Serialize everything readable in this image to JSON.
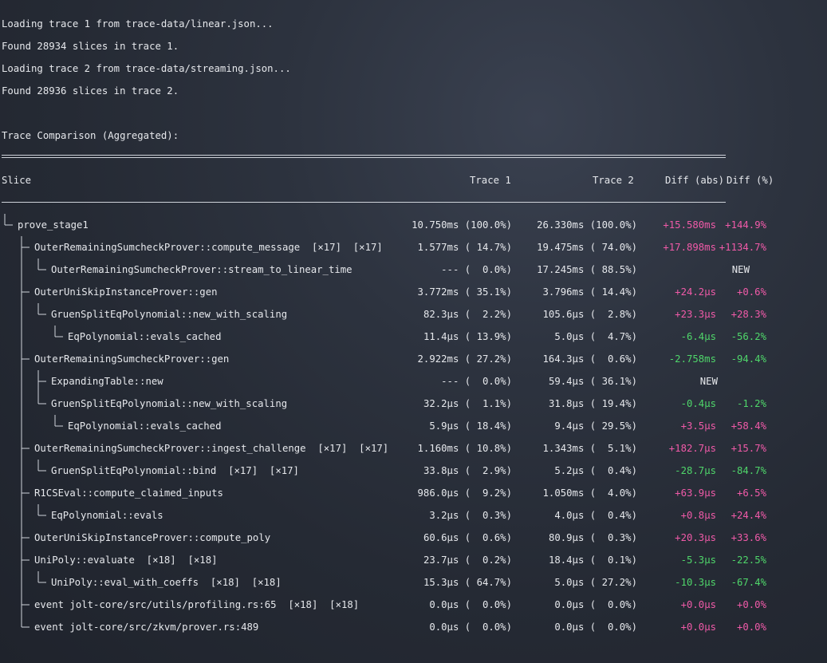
{
  "log": [
    "Loading trace 1 from trace-data/linear.json...",
    "Found 28934 slices in trace 1.",
    "Loading trace 2 from trace-data/streaming.json...",
    "Found 28936 slices in trace 2."
  ],
  "comparison_title": "Trace Comparison (Aggregated):",
  "headers": {
    "slice": "Slice",
    "trace1": "Trace 1",
    "trace2": "Trace 2",
    "diff_abs": "Diff (abs)",
    "diff_pct": "Diff (%)"
  },
  "colors": {
    "increase": "#f05aa8",
    "decrease": "#4fd66a",
    "text": "#e6e8ec"
  },
  "rows": [
    {
      "depth": 0,
      "branch": "last",
      "ancestors": [],
      "name": "prove_stage1",
      "t1": "10.750ms (100.0%)",
      "t2": "26.330ms (100.0%)",
      "dabs": "+15.580ms",
      "dpct": "+144.9%",
      "sign": "pos"
    },
    {
      "depth": 1,
      "branch": "mid",
      "ancestors": [
        false
      ],
      "name": "OuterRemainingSumcheckProver::compute_message  [×17]  [×17]",
      "t1": "1.577ms ( 14.7%)",
      "t2": "19.475ms ( 74.0%)",
      "dabs": "+17.898ms",
      "dpct": "+1134.7%",
      "sign": "pos"
    },
    {
      "depth": 2,
      "branch": "last",
      "ancestors": [
        false,
        true
      ],
      "name": "OuterRemainingSumcheckProver::stream_to_linear_time",
      "t1": "--- (  0.0%)",
      "t2": "17.245ms ( 88.5%)",
      "dabs": "",
      "dpct": "NEW",
      "sign": "neu"
    },
    {
      "depth": 1,
      "branch": "mid",
      "ancestors": [
        false
      ],
      "name": "OuterUniSkipInstanceProver::gen",
      "t1": "3.772ms ( 35.1%)",
      "t2": "3.796ms ( 14.4%)",
      "dabs": "+24.2µs",
      "dpct": "+0.6%",
      "sign": "pos"
    },
    {
      "depth": 2,
      "branch": "last",
      "ancestors": [
        false,
        true
      ],
      "name": "GruenSplitEqPolynomial::new_with_scaling",
      "t1": "82.3µs (  2.2%)",
      "t2": "105.6µs (  2.8%)",
      "dabs": "+23.3µs",
      "dpct": "+28.3%",
      "sign": "pos"
    },
    {
      "depth": 3,
      "branch": "last",
      "ancestors": [
        false,
        true,
        false
      ],
      "name": "EqPolynomial::evals_cached",
      "t1": "11.4µs ( 13.9%)",
      "t2": "5.0µs (  4.7%)",
      "dabs": "-6.4µs",
      "dpct": "-56.2%",
      "sign": "neg"
    },
    {
      "depth": 1,
      "branch": "mid",
      "ancestors": [
        false
      ],
      "name": "OuterRemainingSumcheckProver::gen",
      "t1": "2.922ms ( 27.2%)",
      "t2": "164.3µs (  0.6%)",
      "dabs": "-2.758ms",
      "dpct": "-94.4%",
      "sign": "neg"
    },
    {
      "depth": 2,
      "branch": "mid",
      "ancestors": [
        false,
        true
      ],
      "name": "ExpandingTable::new",
      "t1": "--- (  0.0%)",
      "t2": "59.4µs ( 36.1%)",
      "dabs": "NEW",
      "dpct": "",
      "sign": "neu"
    },
    {
      "depth": 2,
      "branch": "last",
      "ancestors": [
        false,
        true
      ],
      "name": "GruenSplitEqPolynomial::new_with_scaling",
      "t1": "32.2µs (  1.1%)",
      "t2": "31.8µs ( 19.4%)",
      "dabs": "-0.4µs",
      "dpct": "-1.2%",
      "sign": "neg"
    },
    {
      "depth": 3,
      "branch": "last",
      "ancestors": [
        false,
        true,
        false
      ],
      "name": "EqPolynomial::evals_cached",
      "t1": "5.9µs ( 18.4%)",
      "t2": "9.4µs ( 29.5%)",
      "dabs": "+3.5µs",
      "dpct": "+58.4%",
      "sign": "pos"
    },
    {
      "depth": 1,
      "branch": "mid",
      "ancestors": [
        false
      ],
      "name": "OuterRemainingSumcheckProver::ingest_challenge  [×17]  [×17]",
      "t1": "1.160ms ( 10.8%)",
      "t2": "1.343ms (  5.1%)",
      "dabs": "+182.7µs",
      "dpct": "+15.7%",
      "sign": "pos"
    },
    {
      "depth": 2,
      "branch": "last",
      "ancestors": [
        false,
        true
      ],
      "name": "GruenSplitEqPolynomial::bind  [×17]  [×17]",
      "t1": "33.8µs (  2.9%)",
      "t2": "5.2µs (  0.4%)",
      "dabs": "-28.7µs",
      "dpct": "-84.7%",
      "sign": "neg"
    },
    {
      "depth": 1,
      "branch": "mid",
      "ancestors": [
        false
      ],
      "name": "R1CSEval::compute_claimed_inputs",
      "t1": "986.0µs (  9.2%)",
      "t2": "1.050ms (  4.0%)",
      "dabs": "+63.9µs",
      "dpct": "+6.5%",
      "sign": "pos"
    },
    {
      "depth": 2,
      "branch": "last",
      "ancestors": [
        false,
        true
      ],
      "name": "EqPolynomial::evals",
      "t1": "3.2µs (  0.3%)",
      "t2": "4.0µs (  0.4%)",
      "dabs": "+0.8µs",
      "dpct": "+24.4%",
      "sign": "pos"
    },
    {
      "depth": 1,
      "branch": "mid",
      "ancestors": [
        false
      ],
      "name": "OuterUniSkipInstanceProver::compute_poly",
      "t1": "60.6µs (  0.6%)",
      "t2": "80.9µs (  0.3%)",
      "dabs": "+20.3µs",
      "dpct": "+33.6%",
      "sign": "pos"
    },
    {
      "depth": 1,
      "branch": "mid",
      "ancestors": [
        false
      ],
      "name": "UniPoly::evaluate  [×18]  [×18]",
      "t1": "23.7µs (  0.2%)",
      "t2": "18.4µs (  0.1%)",
      "dabs": "-5.3µs",
      "dpct": "-22.5%",
      "sign": "neg"
    },
    {
      "depth": 2,
      "branch": "last",
      "ancestors": [
        false,
        true
      ],
      "name": "UniPoly::eval_with_coeffs  [×18]  [×18]",
      "t1": "15.3µs ( 64.7%)",
      "t2": "5.0µs ( 27.2%)",
      "dabs": "-10.3µs",
      "dpct": "-67.4%",
      "sign": "neg"
    },
    {
      "depth": 1,
      "branch": "mid",
      "ancestors": [
        false
      ],
      "name": "event jolt-core/src/utils/profiling.rs:65  [×18]  [×18]",
      "t1": "0.0µs (  0.0%)",
      "t2": "0.0µs (  0.0%)",
      "dabs": "+0.0µs",
      "dpct": "+0.0%",
      "sign": "pos"
    },
    {
      "depth": 1,
      "branch": "last",
      "ancestors": [
        false
      ],
      "name": "event jolt-core/src/zkvm/prover.rs:489",
      "t1": "0.0µs (  0.0%)",
      "t2": "0.0µs (  0.0%)",
      "dabs": "+0.0µs",
      "dpct": "+0.0%",
      "sign": "pos"
    }
  ]
}
